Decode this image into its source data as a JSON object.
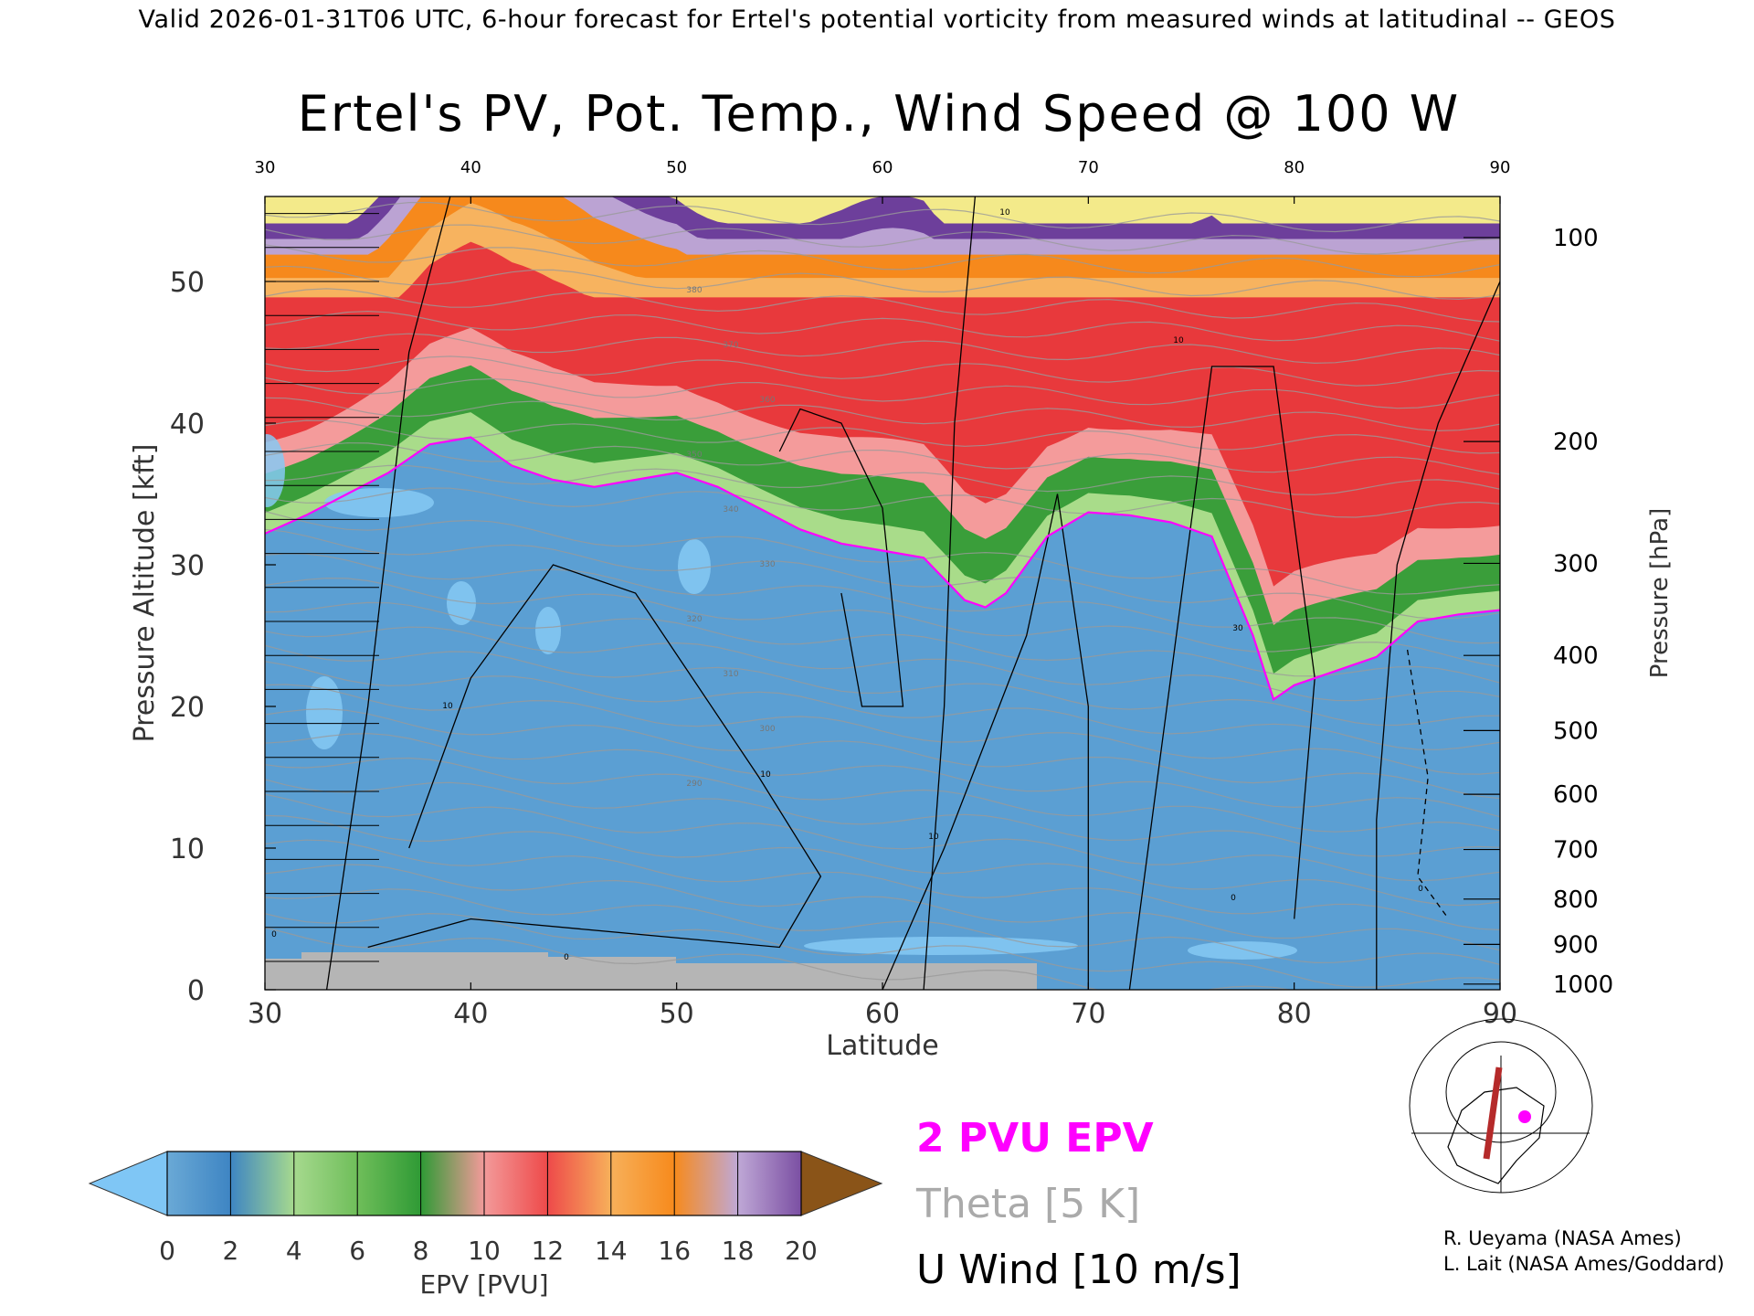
{
  "header": {
    "valid_line": "Valid 2026-01-31T06 UTC, 6-hour forecast for Ertel's potential vorticity from measured winds at latitudinal -- GEOS"
  },
  "chart_data": {
    "type": "heatmap",
    "title": "Ertel's PV, Pot. Temp., Wind Speed @ 100 W",
    "xlabel": "Latitude",
    "ylabel": "Pressure Altitude [kft]",
    "ylabel_right": "Pressure [hPa]",
    "xlim": [
      30,
      90
    ],
    "ylim": [
      0,
      56
    ],
    "x_ticks": [
      "30",
      "40",
      "50",
      "60",
      "70",
      "80",
      "90"
    ],
    "y_ticks": [
      "0",
      "10",
      "20",
      "30",
      "40",
      "50"
    ],
    "pressure_ticks": [
      {
        "label": "100",
        "kft": 53.1
      },
      {
        "label": "200",
        "kft": 38.7
      },
      {
        "label": "300",
        "kft": 30.1
      },
      {
        "label": "400",
        "kft": 23.6
      },
      {
        "label": "500",
        "kft": 18.3
      },
      {
        "label": "600",
        "kft": 13.8
      },
      {
        "label": "700",
        "kft": 9.9
      },
      {
        "label": "800",
        "kft": 6.4
      },
      {
        "label": "900",
        "kft": 3.2
      },
      {
        "label": "1000",
        "kft": 0.4
      }
    ],
    "tropopause_2pvu_kft": [
      {
        "lat": 30,
        "kft": 32.2
      },
      {
        "lat": 32,
        "kft": 33.5
      },
      {
        "lat": 34,
        "kft": 35.0
      },
      {
        "lat": 36,
        "kft": 36.5
      },
      {
        "lat": 38,
        "kft": 38.5
      },
      {
        "lat": 40,
        "kft": 39.0
      },
      {
        "lat": 42,
        "kft": 37.0
      },
      {
        "lat": 44,
        "kft": 36.0
      },
      {
        "lat": 46,
        "kft": 35.5
      },
      {
        "lat": 48,
        "kft": 36.0
      },
      {
        "lat": 50,
        "kft": 36.5
      },
      {
        "lat": 52,
        "kft": 35.5
      },
      {
        "lat": 54,
        "kft": 34.0
      },
      {
        "lat": 56,
        "kft": 32.5
      },
      {
        "lat": 58,
        "kft": 31.5
      },
      {
        "lat": 60,
        "kft": 31.0
      },
      {
        "lat": 62,
        "kft": 30.5
      },
      {
        "lat": 64,
        "kft": 27.5
      },
      {
        "lat": 65,
        "kft": 27.0
      },
      {
        "lat": 66,
        "kft": 28.0
      },
      {
        "lat": 68,
        "kft": 32.0
      },
      {
        "lat": 70,
        "kft": 33.7
      },
      {
        "lat": 72,
        "kft": 33.5
      },
      {
        "lat": 74,
        "kft": 33.0
      },
      {
        "lat": 76,
        "kft": 32.0
      },
      {
        "lat": 78,
        "kft": 25.0
      },
      {
        "lat": 79,
        "kft": 20.5
      },
      {
        "lat": 80,
        "kft": 21.5
      },
      {
        "lat": 82,
        "kft": 22.5
      },
      {
        "lat": 84,
        "kft": 23.5
      },
      {
        "lat": 86,
        "kft": 26.0
      },
      {
        "lat": 88,
        "kft": 26.5
      },
      {
        "lat": 90,
        "kft": 26.8
      }
    ],
    "theta_labels": [
      "380",
      "370",
      "360",
      "350",
      "340",
      "330",
      "320",
      "310",
      "300",
      "290"
    ],
    "u_wind_labels": [
      "30",
      "10",
      "10",
      "10",
      "10",
      "10",
      "0",
      "0",
      "0",
      "0"
    ],
    "colorbar": {
      "label": "EPV [PVU]",
      "ticks": [
        "0",
        "2",
        "4",
        "6",
        "8",
        "10",
        "12",
        "14",
        "16",
        "18",
        "20"
      ],
      "colors": [
        "#7fc6f5",
        "#6aa9d6",
        "#3e85c3",
        "#a6d98e",
        "#6fbe5a",
        "#2f9a35",
        "#f39a9a",
        "#ee4a4a",
        "#f7b05a",
        "#f78a1c",
        "#bfa8d6",
        "#7b4fa3",
        "#f6ef8f",
        "#8a5418"
      ]
    }
  },
  "legend": {
    "epv_line": "2 PVU EPV",
    "theta": "Theta [5 K]",
    "u_wind": "U Wind [10 m/s]",
    "epv_color": "#ff00ff",
    "theta_color": "#aaaaaa"
  },
  "credits": {
    "line1": "R. Ueyama (NASA Ames)",
    "line2": "L. Lait (NASA Ames/Goddard)"
  },
  "inset_map": {
    "icon": "globe-locator-map-icon",
    "track_color": "#b52a2a",
    "marker_color": "#ff00ff"
  }
}
